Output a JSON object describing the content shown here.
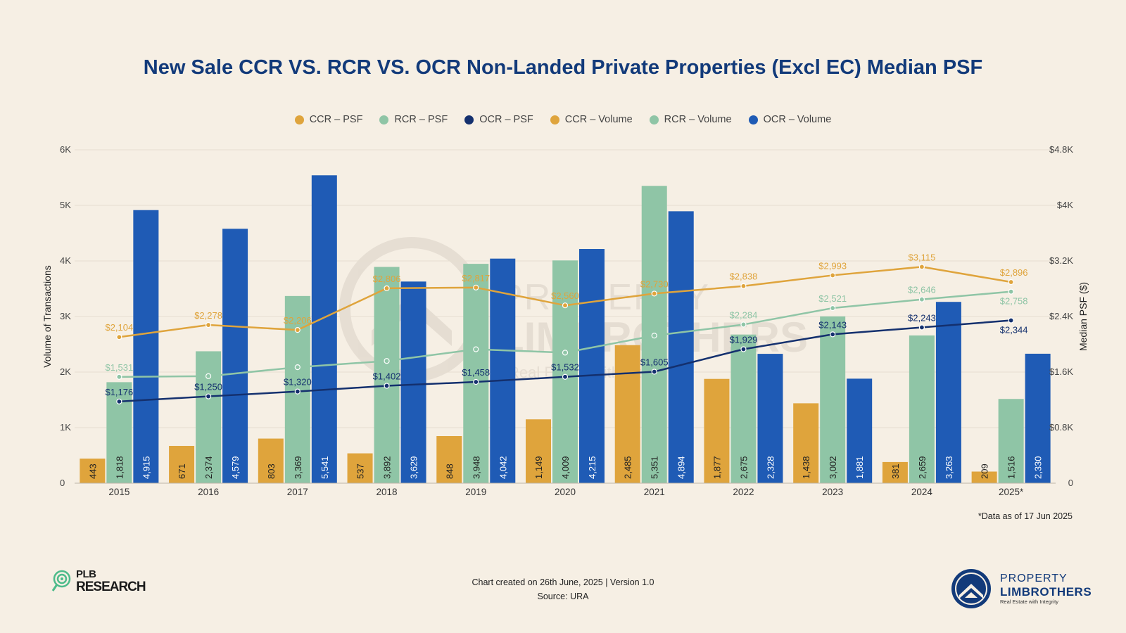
{
  "title": "New Sale CCR VS. RCR VS. OCR Non-Landed Private Properties (Excl EC) Median PSF",
  "legend": [
    {
      "label": "CCR – PSF",
      "color": "#dfa43c"
    },
    {
      "label": "RCR – PSF",
      "color": "#8fc5a6"
    },
    {
      "label": "OCR – PSF",
      "color": "#14306e"
    },
    {
      "label": "CCR – Volume",
      "color": "#dfa43c"
    },
    {
      "label": "RCR – Volume",
      "color": "#8fc5a6"
    },
    {
      "label": "OCR – Volume",
      "color": "#1f5bb5"
    }
  ],
  "chart_data": {
    "type": "bar",
    "categories": [
      "2015",
      "2016",
      "2017",
      "2018",
      "2019",
      "2020",
      "2021",
      "2022",
      "2023",
      "2024",
      "2025*"
    ],
    "series": [
      {
        "name": "CCR – Volume",
        "kind": "bar",
        "axis": "left",
        "color": "#dfa43c",
        "text_color": "#222222",
        "values": [
          443,
          671,
          803,
          537,
          848,
          1149,
          2485,
          1877,
          1438,
          381,
          209
        ],
        "labels": [
          "443",
          "671",
          "803",
          "537",
          "848",
          "1,149",
          "2,485",
          "1,877",
          "1,438",
          "381",
          "209"
        ]
      },
      {
        "name": "RCR – Volume",
        "kind": "bar",
        "axis": "left",
        "color": "#8fc5a6",
        "text_color": "#222222",
        "values": [
          1818,
          2374,
          3369,
          3892,
          3948,
          4009,
          5351,
          2675,
          3002,
          2659,
          1516
        ],
        "labels": [
          "1,818",
          "2,374",
          "3,369",
          "3,892",
          "3,948",
          "4,009",
          "5,351",
          "2,675",
          "3,002",
          "2,659",
          "1,516"
        ]
      },
      {
        "name": "OCR – Volume",
        "kind": "bar",
        "axis": "left",
        "color": "#1f5bb5",
        "text_color": "#ffffff",
        "values": [
          4915,
          4579,
          5541,
          3629,
          4042,
          4215,
          4894,
          2328,
          1881,
          3263,
          2330
        ],
        "labels": [
          "4,915",
          "4,579",
          "5,541",
          "3,629",
          "4,042",
          "4,215",
          "4,894",
          "2,328",
          "1,881",
          "3,263",
          "2,330"
        ]
      },
      {
        "name": "CCR – PSF",
        "kind": "line",
        "axis": "right",
        "color": "#dfa43c",
        "values": [
          2104,
          2278,
          2206,
          2806,
          2817,
          2560,
          2730,
          2838,
          2993,
          3115,
          2896
        ],
        "labels": [
          "$2,104",
          "$2,278",
          "$2,206",
          "$2,806",
          "$2,817",
          "$2,560",
          "$2,730",
          "$2,838",
          "$2,993",
          "$3,115",
          "$2,896"
        ]
      },
      {
        "name": "RCR – PSF",
        "kind": "line",
        "axis": "right",
        "color": "#8fc5a6",
        "values": [
          1531,
          1541,
          1670,
          1760,
          1928,
          1880,
          2125,
          2284,
          2521,
          2646,
          2758
        ],
        "labels": [
          "$1,531",
          "",
          "",
          "",
          "",
          "",
          "",
          "$2,284",
          "$2,521",
          "$2,646",
          "$2,758"
        ]
      },
      {
        "name": "OCR – PSF",
        "kind": "line",
        "axis": "right",
        "color": "#14306e",
        "values": [
          1176,
          1250,
          1320,
          1402,
          1458,
          1532,
          1605,
          1929,
          2143,
          2243,
          2344
        ],
        "labels": [
          "$1,176",
          "$1,250",
          "$1,320",
          "$1,402",
          "$1,458",
          "$1,532",
          "$1,605",
          "$1,929",
          "$2,143",
          "$2,243",
          "$2,344"
        ]
      }
    ],
    "y_left": {
      "label": "Volume of Transactions",
      "range": [
        0,
        6000
      ],
      "ticks": [
        "0",
        "1K",
        "2K",
        "3K",
        "4K",
        "5K",
        "6K"
      ]
    },
    "y_right": {
      "label": "Median PSF ($)",
      "range": [
        0,
        4800
      ],
      "ticks": [
        "0",
        "$0.8K",
        "$1.6K",
        "$2.4K",
        "$3.2K",
        "$4K",
        "$4.8K"
      ]
    },
    "grid": true,
    "legend_position": "top"
  },
  "watermark": {
    "line1": "PROPERTY",
    "line2": "LIMBROTHERS",
    "line3": "Real Estate with Integrity"
  },
  "footnote": "*Data as of 17 Jun 2025",
  "footer": {
    "created": "Chart created on 26th June, 2025 | Version 1.0",
    "source": "Source: URA"
  },
  "plb_logo": {
    "line1": "PLB",
    "line2": "RESEARCH"
  },
  "pl_logo": {
    "line1": "PROPERTY",
    "line2": "LIMBROTHERS",
    "line3": "Real Estate with Integrity"
  }
}
